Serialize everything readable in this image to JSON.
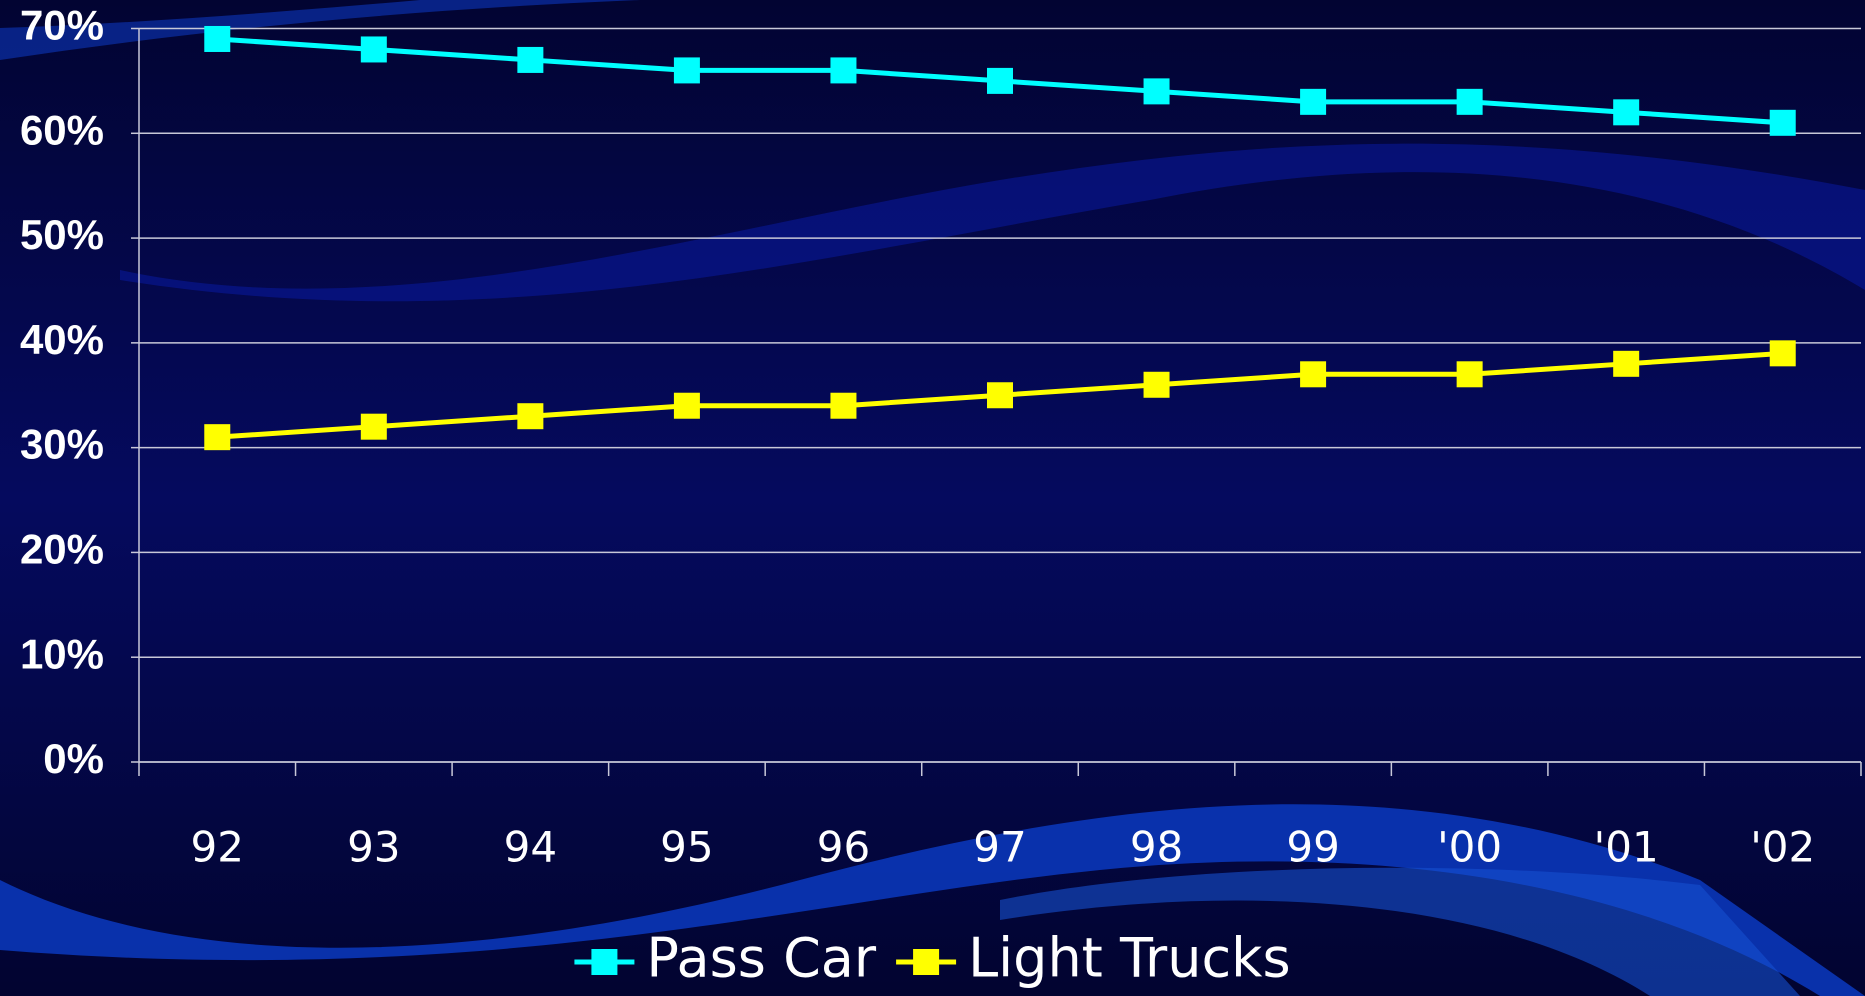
{
  "chart_data": {
    "type": "line",
    "categories": [
      "92",
      "93",
      "94",
      "95",
      "96",
      "97",
      "98",
      "99",
      "'00",
      "'01",
      "'02"
    ],
    "series": [
      {
        "name": "Pass Car",
        "color": "#00ffff",
        "values": [
          69,
          68,
          67,
          66,
          66,
          65,
          64,
          63,
          63,
          62,
          61
        ]
      },
      {
        "name": "Light Trucks",
        "color": "#ffff00",
        "values": [
          31,
          32,
          33,
          34,
          34,
          35,
          36,
          37,
          37,
          38,
          39
        ]
      }
    ],
    "ylim": [
      0,
      70
    ],
    "yticks": [
      {
        "value": 0,
        "label": "0%"
      },
      {
        "value": 10,
        "label": "10%"
      },
      {
        "value": 20,
        "label": "20%"
      },
      {
        "value": 30,
        "label": "30%"
      },
      {
        "value": 40,
        "label": "40%"
      },
      {
        "value": 50,
        "label": "50%"
      },
      {
        "value": 60,
        "label": "60%"
      },
      {
        "value": 70,
        "label": "70%"
      }
    ],
    "grid": true,
    "legend": "bottom"
  }
}
